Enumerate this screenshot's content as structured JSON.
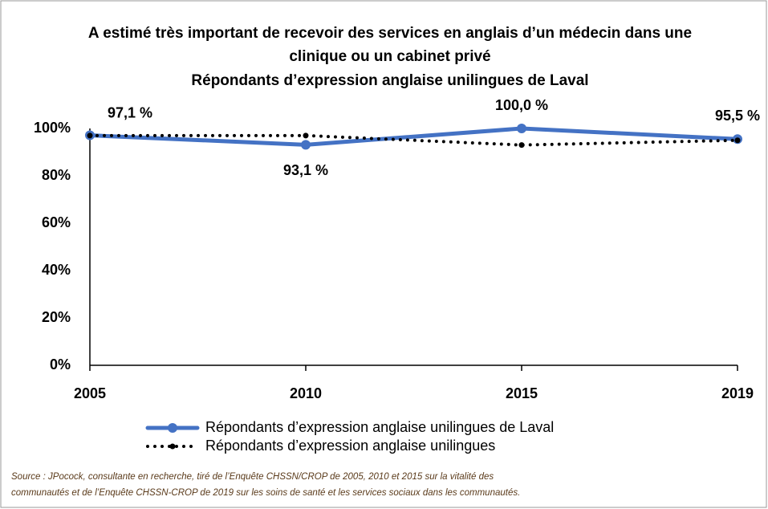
{
  "chart_data": {
    "type": "line",
    "title": [
      "A estimé très important de recevoir des services en anglais  d’un médecin dans une",
      "clinique  ou un cabinet privé"
    ],
    "subtitle": "Répondants d’expression anglaise unilingues de Laval",
    "categories": [
      "2005",
      "2010",
      "2015",
      "2019"
    ],
    "series": [
      {
        "name": "Répondants d’expression anglaise unilingues de Laval",
        "color": "#4472c4",
        "style": "solid",
        "values": [
          97.1,
          93.1,
          100.0,
          95.5
        ],
        "value_labels": [
          "97,1 %",
          "93,1 %",
          "100,0 %",
          "95,5 %"
        ]
      },
      {
        "name": "Répondants d’expression anglaise unilingues",
        "color": "#000000",
        "style": "dotted",
        "values": [
          97,
          97,
          93,
          95
        ]
      }
    ],
    "ylim": [
      0,
      100
    ],
    "yticks": [
      {
        "value": 0,
        "label": "0%"
      },
      {
        "value": 20,
        "label": "20%"
      },
      {
        "value": 40,
        "label": "40%"
      },
      {
        "value": 60,
        "label": "60%"
      },
      {
        "value": 80,
        "label": "80%"
      },
      {
        "value": 100,
        "label": "100%"
      }
    ],
    "grid": false,
    "legend": "bottom",
    "source": [
      "Source : JPocock, consultante en recherche, tiré de l’Enquête CHSSN/CROP de 2005, 2010 et 2015 sur la vitalité des",
      "communautés et de l’Enquête CHSSN-CROP de 2019 sur les soins de santé et les services sociaux dans les communautés."
    ]
  }
}
